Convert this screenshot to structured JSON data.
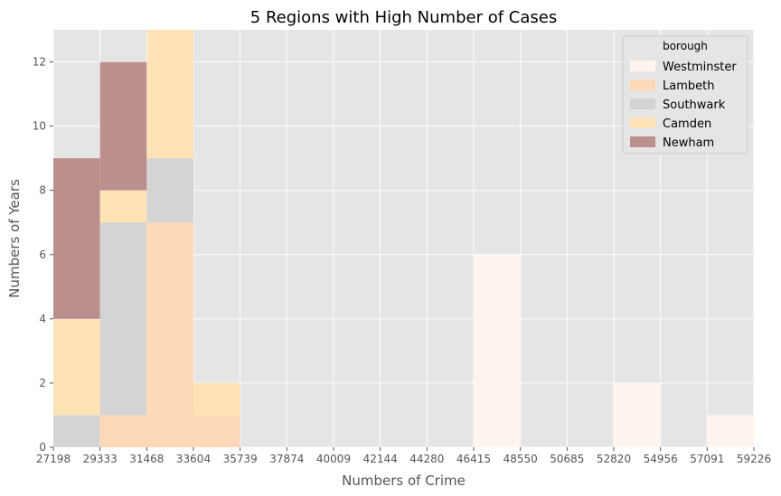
{
  "chart_data": {
    "type": "bar",
    "stacked": true,
    "title": "5 Regions with High Number of Cases",
    "xlabel": "Numbers of Crime",
    "ylabel": "Numbers of Years",
    "bin_edges": [
      27198,
      29333,
      31468,
      33604,
      35739,
      37874,
      40009,
      42144,
      44280,
      46415,
      48550,
      50685,
      52820,
      54956,
      57091,
      59226
    ],
    "x_tick_labels": [
      "27198",
      "29333",
      "31468",
      "33604",
      "35739",
      "37874",
      "40009",
      "42144",
      "44280",
      "46415",
      "48550",
      "50685",
      "52820",
      "54956",
      "57091",
      "59226"
    ],
    "y_ticks": [
      0,
      2,
      4,
      6,
      8,
      10,
      12
    ],
    "ylim": [
      0,
      13
    ],
    "grid": true,
    "legend": {
      "title": "borough",
      "position": "top-right"
    },
    "series": [
      {
        "name": "Southwark",
        "color": "#d4d4d4",
        "values": [
          1,
          6,
          2,
          0,
          0,
          0,
          0,
          0,
          0,
          0,
          0,
          0,
          0,
          0,
          0
        ]
      },
      {
        "name": "Lambeth",
        "color": "#fdd9b9",
        "values": [
          0,
          1,
          7,
          1,
          0,
          0,
          0,
          0,
          0,
          0,
          0,
          0,
          0,
          0,
          0
        ]
      },
      {
        "name": "Camden",
        "color": "#fee3b6",
        "values": [
          3,
          1,
          4,
          1,
          0,
          0,
          0,
          0,
          0,
          0,
          0,
          0,
          0,
          0,
          0
        ]
      },
      {
        "name": "Newham",
        "color": "#bc8f8f",
        "values": [
          5,
          4,
          0,
          0,
          0,
          0,
          0,
          0,
          0,
          0,
          0,
          0,
          0,
          0,
          0
        ]
      },
      {
        "name": "Westminster",
        "color": "#fff5ee",
        "values": [
          0,
          0,
          0,
          0,
          0,
          0,
          0,
          0,
          0,
          6,
          0,
          0,
          2,
          0,
          1
        ]
      }
    ],
    "bin_stack_order": [
      [
        "Southwark",
        "Camden",
        "Newham"
      ],
      [
        "Lambeth",
        "Southwark",
        "Camden",
        "Newham"
      ],
      [
        "Lambeth",
        "Southwark",
        "Camden"
      ],
      [
        "Lambeth",
        "Camden"
      ],
      [],
      [],
      [],
      [],
      [],
      [
        "Westminster"
      ],
      [],
      [],
      [
        "Westminster"
      ],
      [],
      [
        "Westminster"
      ]
    ],
    "legend_order": [
      "Westminster",
      "Lambeth",
      "Southwark",
      "Camden",
      "Newham"
    ]
  }
}
